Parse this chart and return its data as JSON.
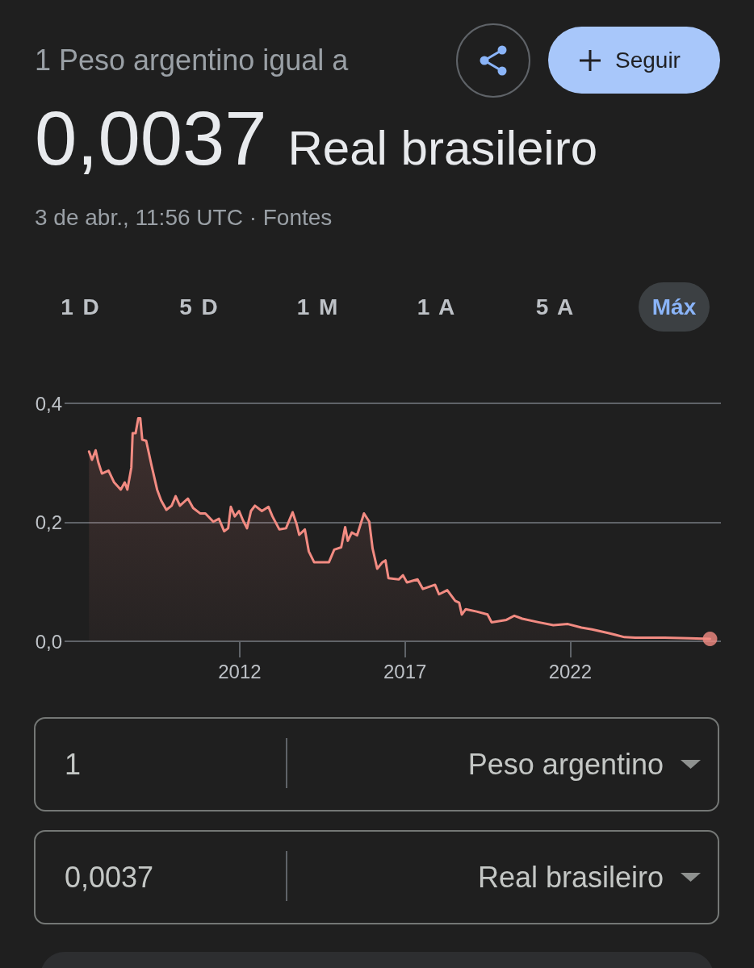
{
  "chart_data": {
    "type": "area",
    "title": "1 Peso argentino igual a",
    "subtitle": "0,0037 Real brasileiro",
    "annotations": [
      "3 de abr., 11:56 UTC · Fontes",
      "Seguir",
      "1 D",
      "5 D",
      "1 M",
      "1 A",
      "5 A",
      "Máx",
      "1",
      "Peso argentino",
      "0,0037",
      "Real brasileiro"
    ],
    "x": [
      2007.44,
      2007.53,
      2007.64,
      2007.72,
      2007.83,
      2008.03,
      2008.2,
      2008.4,
      2008.52,
      2008.6,
      2008.72,
      2008.76,
      2008.85,
      2008.93,
      2008.99,
      2009.05,
      2009.17,
      2009.33,
      2009.5,
      2009.62,
      2009.78,
      2009.94,
      2010.06,
      2010.19,
      2010.43,
      2010.59,
      2010.8,
      2010.96,
      2011.2,
      2011.37,
      2011.53,
      2011.65,
      2011.73,
      2011.85,
      2011.98,
      2012.1,
      2012.22,
      2012.34,
      2012.46,
      2012.67,
      2012.87,
      2012.99,
      2013.2,
      2013.4,
      2013.6,
      2013.72,
      2013.8,
      2013.97,
      2014.09,
      2014.25,
      2014.46,
      2014.7,
      2014.86,
      2015.07,
      2015.19,
      2015.27,
      2015.39,
      2015.55,
      2015.76,
      2015.92,
      2016.02,
      2016.16,
      2016.32,
      2016.41,
      2016.5,
      2016.81,
      2016.94,
      2017.06,
      2017.38,
      2017.54,
      2017.91,
      2018.03,
      2018.28,
      2018.52,
      2018.64,
      2018.72,
      2018.84,
      2019.17,
      2019.5,
      2019.62,
      2020.07,
      2020.31,
      2020.55,
      2021.04,
      2021.49,
      2021.93,
      2022.34,
      2022.66,
      2023.15,
      2023.64,
      2023.97,
      2024.86,
      2025.6,
      2026.23
    ],
    "series": [
      {
        "color": "#f28b82",
        "values": [
          0.319,
          0.305,
          0.321,
          0.301,
          0.282,
          0.287,
          0.267,
          0.255,
          0.267,
          0.255,
          0.292,
          0.35,
          0.35,
          0.375,
          0.375,
          0.339,
          0.337,
          0.296,
          0.255,
          0.237,
          0.221,
          0.228,
          0.244,
          0.228,
          0.24,
          0.224,
          0.215,
          0.215,
          0.201,
          0.206,
          0.185,
          0.19,
          0.226,
          0.21,
          0.219,
          0.203,
          0.19,
          0.219,
          0.228,
          0.219,
          0.226,
          0.21,
          0.188,
          0.19,
          0.217,
          0.197,
          0.179,
          0.188,
          0.151,
          0.133,
          0.133,
          0.133,
          0.154,
          0.158,
          0.192,
          0.169,
          0.183,
          0.178,
          0.215,
          0.201,
          0.156,
          0.122,
          0.133,
          0.136,
          0.106,
          0.104,
          0.111,
          0.099,
          0.104,
          0.088,
          0.095,
          0.079,
          0.086,
          0.068,
          0.065,
          0.045,
          0.054,
          0.05,
          0.045,
          0.032,
          0.036,
          0.043,
          0.038,
          0.032,
          0.027,
          0.029,
          0.023,
          0.02,
          0.014,
          0.007,
          0.006,
          0.006,
          0.005,
          0.004
        ]
      },
      {
        "type": "scatter",
        "color": "#f28b82",
        "x": [
          2026.23
        ],
        "values": [
          0.004
        ]
      }
    ],
    "xlim": [
      2006.7,
      2026.56
    ],
    "xticks": [
      2012,
      2017,
      2022
    ],
    "ylim": [
      0,
      0.4
    ],
    "yticks": [
      {
        "value": 0,
        "label": "0,0"
      },
      {
        "value": 0.2,
        "label": "0,2"
      },
      {
        "value": 0.4,
        "label": "0,4"
      }
    ],
    "grid": "y"
  }
}
